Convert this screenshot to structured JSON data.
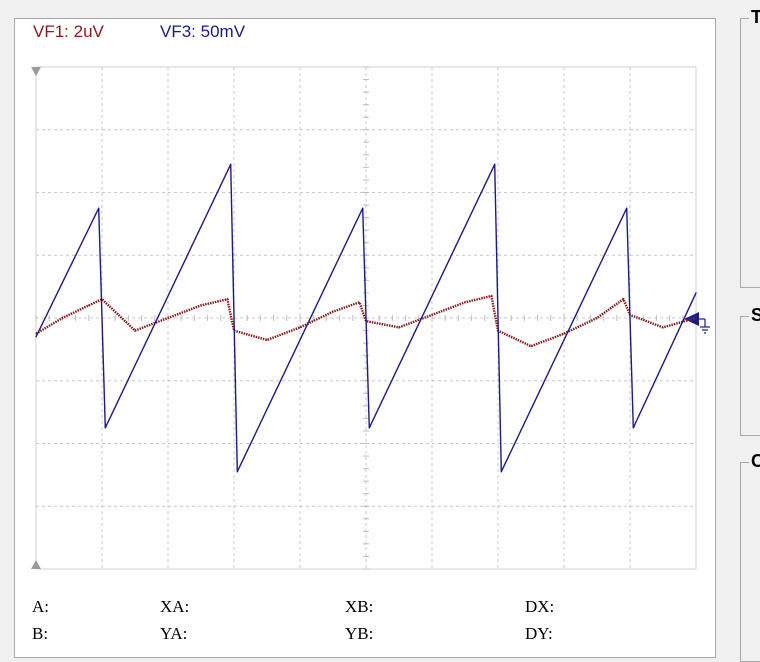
{
  "channels": {
    "vf1": {
      "label": "VF1: 2uV",
      "color": "#8b1a1a"
    },
    "vf3": {
      "label": "VF3: 50mV",
      "color": "#1a1a8b"
    }
  },
  "readouts": {
    "a": "A:",
    "b": "B:",
    "xa": "XA:",
    "ya": "YA:",
    "xb": "XB:",
    "yb": "YB:",
    "dx": "DX:",
    "dy": "DY:"
  },
  "groups": {
    "top": {
      "title": "T"
    },
    "middle": {
      "title": "S"
    },
    "bottom": {
      "title": "C"
    }
  },
  "chart_data": {
    "type": "line",
    "grid": true,
    "divisions": {
      "x": 10,
      "y": 8
    },
    "series": [
      {
        "name": "VF1: 2uV",
        "color": "#8b1a1a",
        "x": [
          0,
          0.4,
          0.8,
          1.0,
          1.5,
          2.0,
          2.5,
          2.9,
          3.0,
          3.5,
          4.0,
          4.5,
          4.9,
          5.0,
          5.5,
          6.0,
          6.5,
          6.9,
          7.0,
          7.5,
          8.0,
          8.5,
          8.9,
          9.0,
          9.5,
          10.0
        ],
        "y": [
          -0.25,
          0.0,
          0.2,
          0.3,
          -0.2,
          0.0,
          0.2,
          0.3,
          -0.2,
          -0.35,
          -0.15,
          0.1,
          0.25,
          -0.05,
          -0.15,
          0.05,
          0.25,
          0.35,
          -0.2,
          -0.45,
          -0.25,
          0.0,
          0.3,
          0.05,
          -0.15,
          0.0
        ]
      },
      {
        "name": "VF3: 50mV",
        "color": "#1a1a8b",
        "x": [
          0,
          0.95,
          1.05,
          2.95,
          3.05,
          4.95,
          5.05,
          6.95,
          7.05,
          8.95,
          9.05,
          10.0
        ],
        "y": [
          -0.3,
          1.75,
          -1.75,
          2.45,
          -2.45,
          1.75,
          -1.75,
          2.45,
          -2.45,
          1.75,
          -1.75,
          0.4
        ]
      }
    ]
  }
}
